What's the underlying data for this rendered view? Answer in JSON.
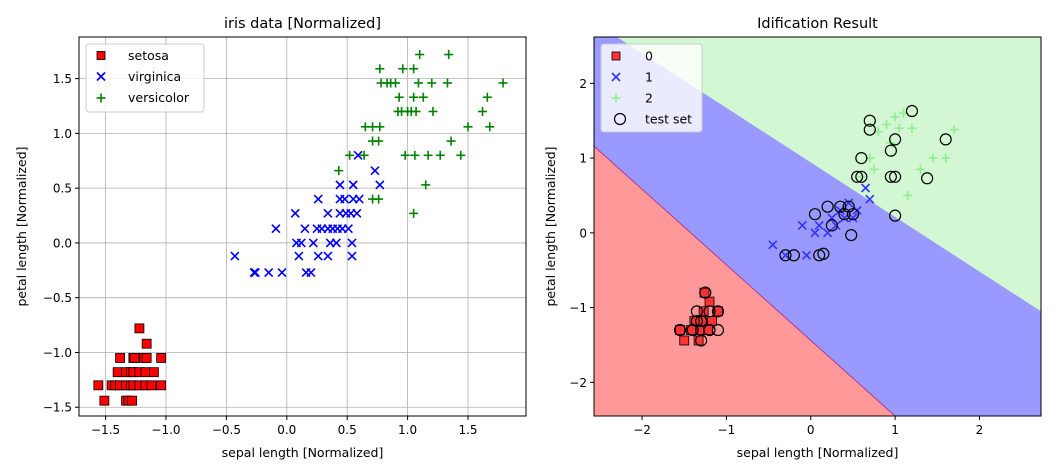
{
  "chart_data": [
    {
      "type": "scatter",
      "title": "iris data [Normalized]",
      "xlabel": "sepal length [Normalized]",
      "ylabel": "petal length [Normalized]",
      "xlim": [
        -1.72,
        1.98
      ],
      "ylim": [
        -1.58,
        1.88
      ],
      "xticks": [
        -1.5,
        -1.0,
        -0.5,
        0.0,
        0.5,
        1.0,
        1.5
      ],
      "xtick_labels": [
        "−1.5",
        "−1.0",
        "−0.5",
        "0.0",
        "0.5",
        "1.0",
        "1.5"
      ],
      "yticks": [
        -1.5,
        -1.0,
        -0.5,
        0.0,
        0.5,
        1.0,
        1.5
      ],
      "ytick_labels": [
        "−1.5",
        "−1.0",
        "−0.5",
        "0.0",
        "0.5",
        "1.0",
        "1.5"
      ],
      "grid": true,
      "legend_position": "top-left",
      "series": [
        {
          "name": "setosa",
          "marker": "square",
          "color": "#ff0000",
          "points": [
            [
              -1.56,
              -1.3
            ],
            [
              -1.51,
              -1.44
            ],
            [
              -1.45,
              -1.3
            ],
            [
              -1.42,
              -1.3
            ],
            [
              -1.4,
              -1.18
            ],
            [
              -1.38,
              -1.3
            ],
            [
              -1.38,
              -1.05
            ],
            [
              -1.33,
              -1.44
            ],
            [
              -1.33,
              -1.3
            ],
            [
              -1.33,
              -1.18
            ],
            [
              -1.31,
              -1.44
            ],
            [
              -1.29,
              -1.3
            ],
            [
              -1.29,
              -1.18
            ],
            [
              -1.28,
              -1.44
            ],
            [
              -1.27,
              -1.05
            ],
            [
              -1.27,
              -1.18
            ],
            [
              -1.27,
              -1.3
            ],
            [
              -1.26,
              -1.05
            ],
            [
              -1.22,
              -1.3
            ],
            [
              -1.22,
              -1.18
            ],
            [
              -1.22,
              -0.78
            ],
            [
              -1.18,
              -1.05
            ],
            [
              -1.17,
              -1.3
            ],
            [
              -1.17,
              -1.18
            ],
            [
              -1.16,
              -0.92
            ],
            [
              -1.16,
              -1.05
            ],
            [
              -1.12,
              -1.3
            ],
            [
              -1.1,
              -1.18
            ],
            [
              -1.04,
              -1.3
            ],
            [
              -1.04,
              -1.05
            ]
          ]
        },
        {
          "name": "virginica",
          "marker": "x",
          "color": "#0000ff",
          "points": [
            [
              -0.43,
              -0.12
            ],
            [
              -0.27,
              -0.27
            ],
            [
              -0.26,
              -0.27
            ],
            [
              -0.15,
              -0.27
            ],
            [
              -0.09,
              0.13
            ],
            [
              -0.04,
              -0.27
            ],
            [
              0.07,
              0.27
            ],
            [
              0.08,
              0.0
            ],
            [
              0.1,
              -0.12
            ],
            [
              0.12,
              0.0
            ],
            [
              0.15,
              0.13
            ],
            [
              0.16,
              -0.27
            ],
            [
              0.2,
              -0.27
            ],
            [
              0.22,
              0.0
            ],
            [
              0.25,
              0.13
            ],
            [
              0.26,
              -0.12
            ],
            [
              0.26,
              0.4
            ],
            [
              0.29,
              0.13
            ],
            [
              0.34,
              -0.12
            ],
            [
              0.34,
              0.27
            ],
            [
              0.34,
              0.13
            ],
            [
              0.36,
              0.0
            ],
            [
              0.38,
              0.13
            ],
            [
              0.41,
              0.0
            ],
            [
              0.42,
              0.13
            ],
            [
              0.44,
              0.27
            ],
            [
              0.44,
              0.4
            ],
            [
              0.44,
              0.53
            ],
            [
              0.46,
              0.13
            ],
            [
              0.48,
              0.4
            ],
            [
              0.49,
              0.27
            ],
            [
              0.51,
              0.13
            ],
            [
              0.53,
              0.27
            ],
            [
              0.54,
              0.0
            ],
            [
              0.54,
              -0.12
            ],
            [
              0.55,
              0.4
            ],
            [
              0.55,
              0.53
            ],
            [
              0.58,
              0.27
            ],
            [
              0.59,
              0.8
            ],
            [
              0.6,
              0.4
            ],
            [
              0.73,
              0.66
            ],
            [
              0.77,
              0.53
            ]
          ]
        },
        {
          "name": "versicolor",
          "marker": "plus",
          "color": "#008000",
          "points": [
            [
              0.43,
              0.66
            ],
            [
              0.52,
              0.8
            ],
            [
              0.64,
              0.8
            ],
            [
              0.65,
              1.06
            ],
            [
              0.71,
              0.4
            ],
            [
              0.71,
              1.06
            ],
            [
              0.71,
              0.93
            ],
            [
              0.76,
              0.4
            ],
            [
              0.76,
              0.93
            ],
            [
              0.77,
              1.06
            ],
            [
              0.77,
              1.59
            ],
            [
              0.78,
              1.46
            ],
            [
              0.83,
              1.46
            ],
            [
              0.86,
              1.46
            ],
            [
              0.9,
              1.46
            ],
            [
              0.92,
              1.2
            ],
            [
              0.93,
              1.33
            ],
            [
              0.95,
              1.2
            ],
            [
              0.96,
              1.59
            ],
            [
              0.98,
              0.8
            ],
            [
              1.0,
              1.2
            ],
            [
              1.03,
              1.2
            ],
            [
              1.05,
              1.33
            ],
            [
              1.05,
              1.59
            ],
            [
              1.05,
              0.27
            ],
            [
              1.06,
              0.8
            ],
            [
              1.07,
              1.2
            ],
            [
              1.09,
              1.46
            ],
            [
              1.1,
              1.72
            ],
            [
              1.13,
              1.33
            ],
            [
              1.15,
              0.53
            ],
            [
              1.17,
              0.8
            ],
            [
              1.2,
              1.46
            ],
            [
              1.21,
              1.2
            ],
            [
              1.27,
              0.8
            ],
            [
              1.33,
              1.46
            ],
            [
              1.34,
              1.72
            ],
            [
              1.36,
              0.93
            ],
            [
              1.44,
              0.8
            ],
            [
              1.5,
              1.06
            ],
            [
              1.62,
              1.2
            ],
            [
              1.66,
              1.33
            ],
            [
              1.68,
              1.06
            ],
            [
              1.79,
              1.46
            ]
          ]
        }
      ]
    },
    {
      "type": "scatter",
      "title": "Idification Result",
      "xlabel": "sepal length [Normalized]",
      "ylabel": "petal length [Normalized]",
      "xlim": [
        -2.57,
        2.73
      ],
      "ylim": [
        -2.45,
        2.62
      ],
      "xticks": [
        -2,
        -1,
        0,
        1,
        2
      ],
      "xtick_labels": [
        "−2",
        "−1",
        "0",
        "1",
        "2"
      ],
      "yticks": [
        -2,
        -1,
        0,
        1,
        2
      ],
      "ytick_labels": [
        "−2",
        "−1",
        "0",
        "1",
        "2"
      ],
      "grid": false,
      "legend_position": "top-left",
      "decision_regions": [
        {
          "class": "0",
          "color": "#ff9999"
        },
        {
          "class": "1",
          "color": "#9999ff"
        },
        {
          "class": "2",
          "color": "#d2f7d2"
        }
      ],
      "series": [
        {
          "name": "0",
          "marker": "square",
          "color": "#ff3333",
          "points": [
            [
              -1.55,
              -1.3
            ],
            [
              -1.5,
              -1.44
            ],
            [
              -1.42,
              -1.3
            ],
            [
              -1.38,
              -1.18
            ],
            [
              -1.33,
              -1.44
            ],
            [
              -1.3,
              -1.3
            ],
            [
              -1.27,
              -1.05
            ],
            [
              -1.27,
              -1.18
            ],
            [
              -1.26,
              -0.8
            ],
            [
              -1.22,
              -1.3
            ],
            [
              -1.2,
              -0.92
            ],
            [
              -1.17,
              -1.18
            ],
            [
              -1.1,
              -1.05
            ]
          ]
        },
        {
          "name": "1",
          "marker": "x",
          "color": "#3333ff",
          "points": [
            [
              -0.45,
              -0.16
            ],
            [
              -0.3,
              -0.3
            ],
            [
              -0.1,
              0.1
            ],
            [
              -0.05,
              -0.3
            ],
            [
              0.05,
              0.0
            ],
            [
              0.1,
              0.1
            ],
            [
              0.2,
              0.0
            ],
            [
              0.25,
              0.2
            ],
            [
              0.3,
              0.1
            ],
            [
              0.35,
              0.3
            ],
            [
              0.4,
              0.2
            ],
            [
              0.45,
              0.4
            ],
            [
              0.5,
              0.2
            ],
            [
              0.55,
              0.3
            ],
            [
              0.65,
              0.6
            ],
            [
              0.7,
              0.45
            ]
          ]
        },
        {
          "name": "2",
          "marker": "plus",
          "color": "#90ee90",
          "points": [
            [
              0.6,
              0.75
            ],
            [
              0.7,
              1.0
            ],
            [
              0.75,
              0.85
            ],
            [
              0.8,
              1.35
            ],
            [
              0.9,
              1.45
            ],
            [
              0.95,
              1.2
            ],
            [
              1.0,
              1.55
            ],
            [
              1.05,
              1.4
            ],
            [
              1.1,
              1.6
            ],
            [
              1.15,
              0.5
            ],
            [
              1.2,
              1.4
            ],
            [
              1.3,
              0.85
            ],
            [
              1.45,
              1.0
            ],
            [
              1.6,
              1.0
            ],
            [
              1.7,
              1.38
            ]
          ]
        },
        {
          "name": "test set",
          "marker": "circle-open",
          "color": "#000000",
          "points": [
            [
              -1.55,
              -1.3
            ],
            [
              -1.4,
              -1.3
            ],
            [
              -1.35,
              -1.18
            ],
            [
              -1.35,
              -1.05
            ],
            [
              -1.3,
              -1.18
            ],
            [
              -1.3,
              -1.44
            ],
            [
              -1.25,
              -0.8
            ],
            [
              -1.2,
              -1.05
            ],
            [
              -1.2,
              -1.3
            ],
            [
              -1.1,
              -1.3
            ],
            [
              -1.1,
              -1.05
            ],
            [
              -0.3,
              -0.3
            ],
            [
              -0.2,
              -0.3
            ],
            [
              0.05,
              0.25
            ],
            [
              0.1,
              -0.3
            ],
            [
              0.15,
              -0.28
            ],
            [
              0.2,
              0.35
            ],
            [
              0.25,
              0.1
            ],
            [
              0.35,
              0.35
            ],
            [
              0.4,
              0.25
            ],
            [
              0.45,
              0.35
            ],
            [
              0.5,
              0.25
            ],
            [
              0.48,
              -0.03
            ],
            [
              0.55,
              0.75
            ],
            [
              0.6,
              1.0
            ],
            [
              0.6,
              0.75
            ],
            [
              0.7,
              1.5
            ],
            [
              0.7,
              1.38
            ],
            [
              0.95,
              1.1
            ],
            [
              0.95,
              0.75
            ],
            [
              1.0,
              1.25
            ],
            [
              1.0,
              0.75
            ],
            [
              1.0,
              0.23
            ],
            [
              1.2,
              1.63
            ],
            [
              1.38,
              0.73
            ],
            [
              1.6,
              1.25
            ]
          ]
        }
      ]
    }
  ]
}
